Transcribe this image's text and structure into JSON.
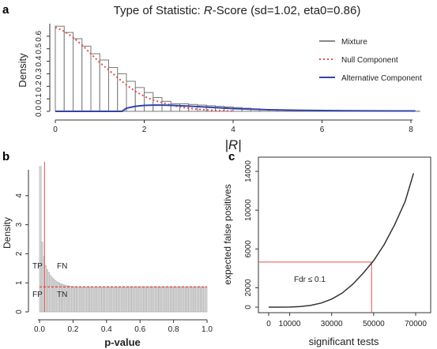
{
  "panels": {
    "a": "a",
    "b": "b",
    "c": "c"
  },
  "chart_data": [
    {
      "id": "a",
      "type": "bar",
      "title_prefix": "Type of Statistic: ",
      "title_italic": "R",
      "title_suffix": "-Score (sd=1.02, eta0=0.86)",
      "xlabel": "|R|",
      "ylabel": "Density",
      "xlim": [
        0,
        8.2
      ],
      "ylim": [
        0,
        0.7
      ],
      "xticks": [
        "0",
        "2",
        "4",
        "6",
        "8"
      ],
      "yticks": [
        "0.0",
        "0.1",
        "0.2",
        "0.3",
        "0.4",
        "0.5",
        "0.6"
      ],
      "bin_width": 0.2,
      "histogram_values": [
        0.68,
        0.63,
        0.58,
        0.52,
        0.46,
        0.41,
        0.35,
        0.3,
        0.24,
        0.19,
        0.15,
        0.11,
        0.08,
        0.06,
        0.06,
        0.055,
        0.05,
        0.045,
        0.04,
        0.035,
        0.03,
        0.025,
        0.02,
        0.015,
        0.012,
        0.01,
        0.008,
        0.006,
        0.005,
        0.004,
        0.003,
        0.002,
        0.002,
        0.001,
        0.001,
        0.001,
        0.001,
        0.001,
        0.001,
        0.001,
        0.001
      ],
      "null_curve": {
        "x": [
          0,
          0.2,
          0.4,
          0.6,
          0.8,
          1.0,
          1.2,
          1.4,
          1.6,
          1.8,
          2.0,
          2.2,
          2.4,
          2.6,
          2.8,
          3.0,
          3.2,
          3.4,
          3.6,
          3.8,
          4.0
        ],
        "y": [
          0.67,
          0.64,
          0.59,
          0.53,
          0.46,
          0.39,
          0.33,
          0.27,
          0.21,
          0.16,
          0.12,
          0.09,
          0.07,
          0.05,
          0.035,
          0.025,
          0.017,
          0.011,
          0.007,
          0.004,
          0.002
        ]
      },
      "alt_curve": {
        "x": [
          0,
          1.5,
          1.6,
          1.8,
          2.0,
          2.2,
          2.4,
          2.6,
          2.8,
          3.0,
          3.2,
          3.4,
          3.6,
          3.8,
          4.0,
          4.4,
          4.8,
          5.2,
          5.6,
          6.0,
          6.5,
          7.0,
          7.5,
          8.1
        ],
        "y": [
          0,
          0,
          0.025,
          0.04,
          0.047,
          0.05,
          0.05,
          0.048,
          0.045,
          0.042,
          0.038,
          0.034,
          0.03,
          0.026,
          0.022,
          0.017,
          0.013,
          0.01,
          0.008,
          0.006,
          0.005,
          0.004,
          0.003,
          0.003
        ]
      },
      "legend": [
        {
          "label": "Mixture",
          "style": "solid",
          "color": "#888888"
        },
        {
          "label": "Null Component",
          "style": "dotted",
          "color": "#e05050"
        },
        {
          "label": "Alternative Component",
          "style": "solid",
          "color": "#3344aa"
        }
      ],
      "legend_position": "top-right"
    },
    {
      "id": "b",
      "type": "bar",
      "xlabel": "p-value",
      "ylabel": "Density",
      "xlim": [
        0,
        1.0
      ],
      "ylim": [
        0,
        5
      ],
      "xticks": [
        "0.0",
        "0.2",
        "0.4",
        "0.6",
        "0.8",
        "1.0"
      ],
      "yticks": [
        "0",
        "1",
        "2",
        "3",
        "4"
      ],
      "bin_width": 0.01,
      "histogram_values": [
        5.0,
        2.4,
        1.9,
        1.6,
        1.45,
        1.35,
        1.25,
        1.18,
        1.12,
        1.07,
        1.03,
        1.0,
        0.97,
        0.95,
        0.93,
        0.91,
        0.9,
        0.89,
        0.88,
        0.87,
        0.87,
        0.86,
        0.86,
        0.86,
        0.86,
        0.86,
        0.86,
        0.86,
        0.86,
        0.86,
        0.86,
        0.86,
        0.86,
        0.86,
        0.86,
        0.86,
        0.86,
        0.86,
        0.86,
        0.86,
        0.86,
        0.86,
        0.86,
        0.86,
        0.86,
        0.86,
        0.86,
        0.86,
        0.86,
        0.86,
        0.86,
        0.86,
        0.86,
        0.86,
        0.86,
        0.86,
        0.86,
        0.86,
        0.86,
        0.86,
        0.86,
        0.86,
        0.86,
        0.86,
        0.86,
        0.86,
        0.86,
        0.86,
        0.86,
        0.86,
        0.86,
        0.86,
        0.86,
        0.86,
        0.86,
        0.86,
        0.86,
        0.86,
        0.86,
        0.86,
        0.86,
        0.86,
        0.86,
        0.86,
        0.86,
        0.86,
        0.86,
        0.86,
        0.86,
        0.86,
        0.86,
        0.86,
        0.86,
        0.86,
        0.86,
        0.86,
        0.86,
        0.86,
        0.86,
        0.86
      ],
      "null_level": 0.86,
      "cutoff_p": 0.03,
      "annotations": [
        "TP",
        "FN",
        "FP",
        "TN"
      ]
    },
    {
      "id": "c",
      "type": "line",
      "xlabel": "significant tests",
      "ylabel": "expected false positives",
      "xlim": [
        0,
        70000
      ],
      "ylim": [
        0,
        14000
      ],
      "xticks": [
        "0",
        "10000",
        "30000",
        "50000",
        "70000"
      ],
      "xtick_values": [
        0,
        10000,
        30000,
        50000,
        70000
      ],
      "yticks": [
        "0",
        "2000",
        "6000",
        "10000",
        "14000"
      ],
      "ytick_values": [
        0,
        2000,
        6000,
        10000,
        14000
      ],
      "curve": {
        "x": [
          0,
          5000,
          10000,
          15000,
          20000,
          25000,
          30000,
          35000,
          40000,
          45000,
          50000,
          55000,
          60000,
          65000,
          69000
        ],
        "y": [
          0,
          2,
          15,
          60,
          180,
          420,
          830,
          1450,
          2350,
          3500,
          4800,
          6450,
          8500,
          10900,
          13800
        ]
      },
      "cutoff": {
        "x": 49000,
        "y": 4650
      },
      "annotation": "Fdr ≤ 0.1"
    }
  ]
}
